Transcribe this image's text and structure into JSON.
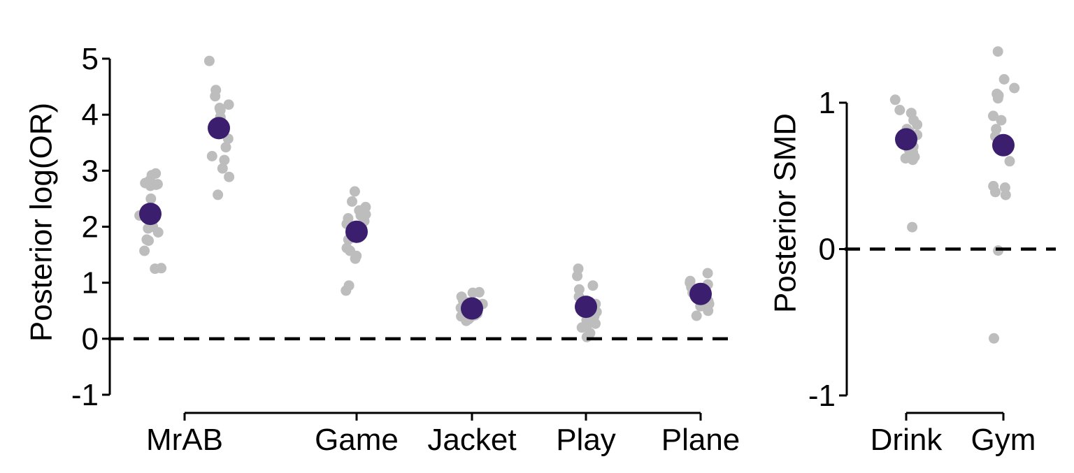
{
  "chart_data": [
    {
      "type": "scatter",
      "ylabel": "Posterior log(OR)",
      "ylim": [
        -1,
        5
      ],
      "yticks": [
        -1,
        0,
        1,
        2,
        3,
        4,
        5
      ],
      "reference_line": 0,
      "categories": [
        "MrAB",
        "Game",
        "Jacket",
        "Play",
        "Plane"
      ],
      "category_label_position": "centered under the two MrAB columns",
      "colors": {
        "individual": "#bdbdbd",
        "pooled": "#3b1f6e",
        "reference": "#000000"
      },
      "series": [
        {
          "category": "MrAB",
          "pooled": 2.23,
          "points": [
            2.95,
            2.92,
            2.82,
            2.78,
            2.76,
            2.75,
            2.73,
            2.5,
            2.25,
            2.2,
            2.1,
            2.0,
            1.97,
            1.9,
            1.77,
            1.75,
            1.57,
            1.26,
            1.25
          ]
        },
        {
          "category": "MrAB",
          "pooled": 3.76,
          "points": [
            4.96,
            4.44,
            4.33,
            4.18,
            4.12,
            4.08,
            3.96,
            3.95,
            3.88,
            3.72,
            3.57,
            3.42,
            3.26,
            3.19,
            3.04,
            2.89,
            2.57
          ]
        },
        {
          "category": "Game",
          "pooled": 1.91,
          "points": [
            2.63,
            2.45,
            2.35,
            2.29,
            2.22,
            2.2,
            2.15,
            2.1,
            2.05,
            2.0,
            1.97,
            1.85,
            1.77,
            1.62,
            1.57,
            1.48,
            1.43,
            0.95,
            0.86
          ]
        },
        {
          "category": "Jacket",
          "pooled": 0.54,
          "points": [
            0.83,
            0.82,
            0.75,
            0.68,
            0.65,
            0.62,
            0.58,
            0.55,
            0.5,
            0.48,
            0.45,
            0.42,
            0.4,
            0.38,
            0.35,
            0.32
          ]
        },
        {
          "category": "Play",
          "pooled": 0.57,
          "points": [
            1.25,
            1.12,
            0.95,
            0.88,
            0.75,
            0.65,
            0.62,
            0.55,
            0.48,
            0.4,
            0.33,
            0.27,
            0.22,
            0.2,
            0.1,
            0.03
          ]
        },
        {
          "category": "Plane",
          "pooled": 0.8,
          "points": [
            1.17,
            1.03,
            1.0,
            0.97,
            0.92,
            0.88,
            0.82,
            0.78,
            0.75,
            0.7,
            0.67,
            0.65,
            0.62,
            0.58,
            0.5,
            0.41
          ]
        }
      ]
    },
    {
      "type": "scatter",
      "ylabel": "Posterior SMD",
      "ylim": [
        -1,
        1
      ],
      "yticks": [
        -1,
        0,
        1
      ],
      "reference_line": 0,
      "categories": [
        "Drink",
        "Gym"
      ],
      "colors": {
        "individual": "#bdbdbd",
        "pooled": "#3b1f6e",
        "reference": "#000000"
      },
      "series": [
        {
          "category": "Drink",
          "pooled": 0.75,
          "points": [
            1.02,
            0.95,
            0.93,
            0.88,
            0.85,
            0.82,
            0.8,
            0.78,
            0.75,
            0.74,
            0.72,
            0.7,
            0.68,
            0.66,
            0.63,
            0.62,
            0.61,
            0.15
          ]
        },
        {
          "category": "Gym",
          "pooled": 0.71,
          "points": [
            1.35,
            1.16,
            1.1,
            1.06,
            1.05,
            1.03,
            0.91,
            0.88,
            0.82,
            0.77,
            0.6,
            0.43,
            0.42,
            0.39,
            0.37,
            -0.01,
            -0.61
          ]
        }
      ]
    }
  ]
}
